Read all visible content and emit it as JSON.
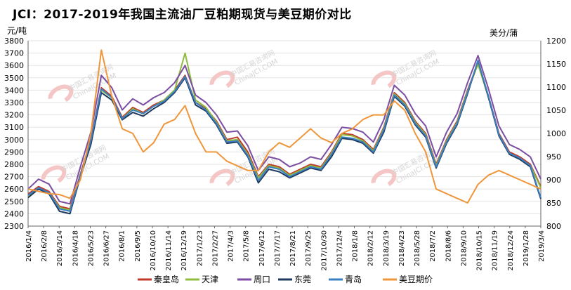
{
  "title": "JCI：2017-2019年我国主流油厂豆粕期现货与美豆期价对比",
  "chart_data": {
    "type": "line",
    "left_unit": "元/吨",
    "right_unit": "美分/蒲",
    "y_left": {
      "min": 2300,
      "max": 3800,
      "ticks": [
        "2300",
        "2400",
        "2500",
        "2600",
        "2700",
        "2800",
        "2900",
        "3000",
        "3100",
        "3200",
        "3300",
        "3400",
        "3500",
        "3600",
        "3700",
        "3800"
      ]
    },
    "y_right": {
      "min": 800,
      "max": 1200,
      "ticks": [
        "800",
        "850",
        "900",
        "950",
        "1000",
        "1050",
        "1100",
        "1150",
        "1200"
      ]
    },
    "x_labels": [
      "2016/1/4",
      "2016/2/8",
      "2016/3/14",
      "2016/4/18",
      "2016/5/23",
      "2016/6/27",
      "2016/8/1",
      "2016/9/5",
      "2016/10/10",
      "2016/11/14",
      "2016/12/19",
      "2017/1/23",
      "2017/2/27",
      "2017/4/3",
      "2017/5/8",
      "2017/6/12",
      "2017/7/17",
      "2017/8/21",
      "2017/9/25",
      "2017/10/30",
      "2017/12/4",
      "2018/1/8",
      "2018/2/12",
      "2018/3/19",
      "2018/4/23",
      "2018/5/28",
      "2018/7/2",
      "2018/8/6",
      "2018/9/10",
      "2018/10/15",
      "2018/11/19",
      "2018/12/24",
      "2019/1/28",
      "2019/3/4"
    ],
    "watermarks": [
      "中国汇易咨询网",
      "ChinaJCI.COM"
    ],
    "series": [
      {
        "name": "秦皇岛",
        "color": "#c0392b",
        "axis": "left",
        "values": [
          2560,
          2620,
          2580,
          2460,
          2440,
          2720,
          3000,
          3420,
          3350,
          3180,
          3260,
          3220,
          3280,
          3320,
          3400,
          3520,
          3300,
          3250,
          3150,
          3000,
          3020,
          2900,
          2700,
          2800,
          2780,
          2720,
          2760,
          2800,
          2780,
          2900,
          3050,
          3040,
          3000,
          2920,
          3100,
          3380,
          3300,
          3150,
          3050,
          2800,
          3000,
          3150,
          3400,
          3620,
          3350,
          3050,
          2900,
          2860,
          2800,
          2620
        ]
      },
      {
        "name": "天津",
        "color": "#8fbc3f",
        "axis": "left",
        "values": [
          2540,
          2610,
          2570,
          2450,
          2430,
          2700,
          2980,
          3400,
          3340,
          3170,
          3250,
          3210,
          3270,
          3320,
          3400,
          3700,
          3320,
          3260,
          3140,
          2990,
          3000,
          2880,
          2690,
          2790,
          2770,
          2710,
          2750,
          2790,
          2770,
          2890,
          3040,
          3030,
          2990,
          2910,
          3090,
          3370,
          3290,
          3140,
          3040,
          2790,
          2990,
          3140,
          3390,
          3610,
          3340,
          3040,
          2890,
          2850,
          2790,
          2610
        ]
      },
      {
        "name": "周口",
        "color": "#7b4ea3",
        "axis": "left",
        "values": [
          2600,
          2680,
          2640,
          2500,
          2480,
          2780,
          3060,
          3520,
          3420,
          3240,
          3330,
          3280,
          3340,
          3380,
          3460,
          3600,
          3360,
          3300,
          3200,
          3060,
          3070,
          2950,
          2750,
          2860,
          2840,
          2780,
          2810,
          2860,
          2840,
          2960,
          3100,
          3090,
          3060,
          2980,
          3160,
          3440,
          3360,
          3210,
          3110,
          2860,
          3060,
          3210,
          3460,
          3680,
          3410,
          3110,
          2960,
          2920,
          2860,
          2680
        ]
      },
      {
        "name": "东莞",
        "color": "#1f3a5f",
        "axis": "left",
        "values": [
          2530,
          2600,
          2560,
          2420,
          2400,
          2700,
          2960,
          3380,
          3320,
          3160,
          3220,
          3190,
          3250,
          3300,
          3380,
          3500,
          3280,
          3230,
          3120,
          2970,
          2980,
          2860,
          2650,
          2760,
          2740,
          2690,
          2730,
          2770,
          2750,
          2860,
          3010,
          3000,
          2970,
          2890,
          3060,
          3350,
          3270,
          3120,
          3020,
          2770,
          2970,
          3120,
          3370,
          3640,
          3340,
          3030,
          2880,
          2840,
          2780,
          2520
        ]
      },
      {
        "name": "青岛",
        "color": "#3a7fc1",
        "axis": "left",
        "values": [
          2550,
          2610,
          2570,
          2440,
          2420,
          2710,
          2990,
          3410,
          3340,
          3170,
          3240,
          3210,
          3270,
          3310,
          3390,
          3510,
          3300,
          3240,
          3130,
          2980,
          2990,
          2870,
          2670,
          2780,
          2760,
          2700,
          2740,
          2780,
          2760,
          2880,
          3020,
          3010,
          2980,
          2900,
          3080,
          3360,
          3280,
          3130,
          3030,
          2780,
          2980,
          3130,
          3380,
          3640,
          3350,
          3040,
          2890,
          2850,
          2790,
          2530
        ]
      },
      {
        "name": "美豆期价",
        "color": "#f0963a",
        "axis": "right",
        "values": [
          880,
          875,
          870,
          868,
          860,
          900,
          1000,
          1180,
          1080,
          1010,
          1000,
          960,
          980,
          1020,
          1030,
          1060,
          1000,
          960,
          960,
          940,
          930,
          920,
          920,
          960,
          980,
          970,
          990,
          1010,
          990,
          980,
          1000,
          1010,
          1030,
          1040,
          1040,
          1070,
          1050,
          1000,
          960,
          880,
          870,
          860,
          850,
          890,
          910,
          920,
          910,
          900,
          890,
          880
        ]
      }
    ]
  }
}
